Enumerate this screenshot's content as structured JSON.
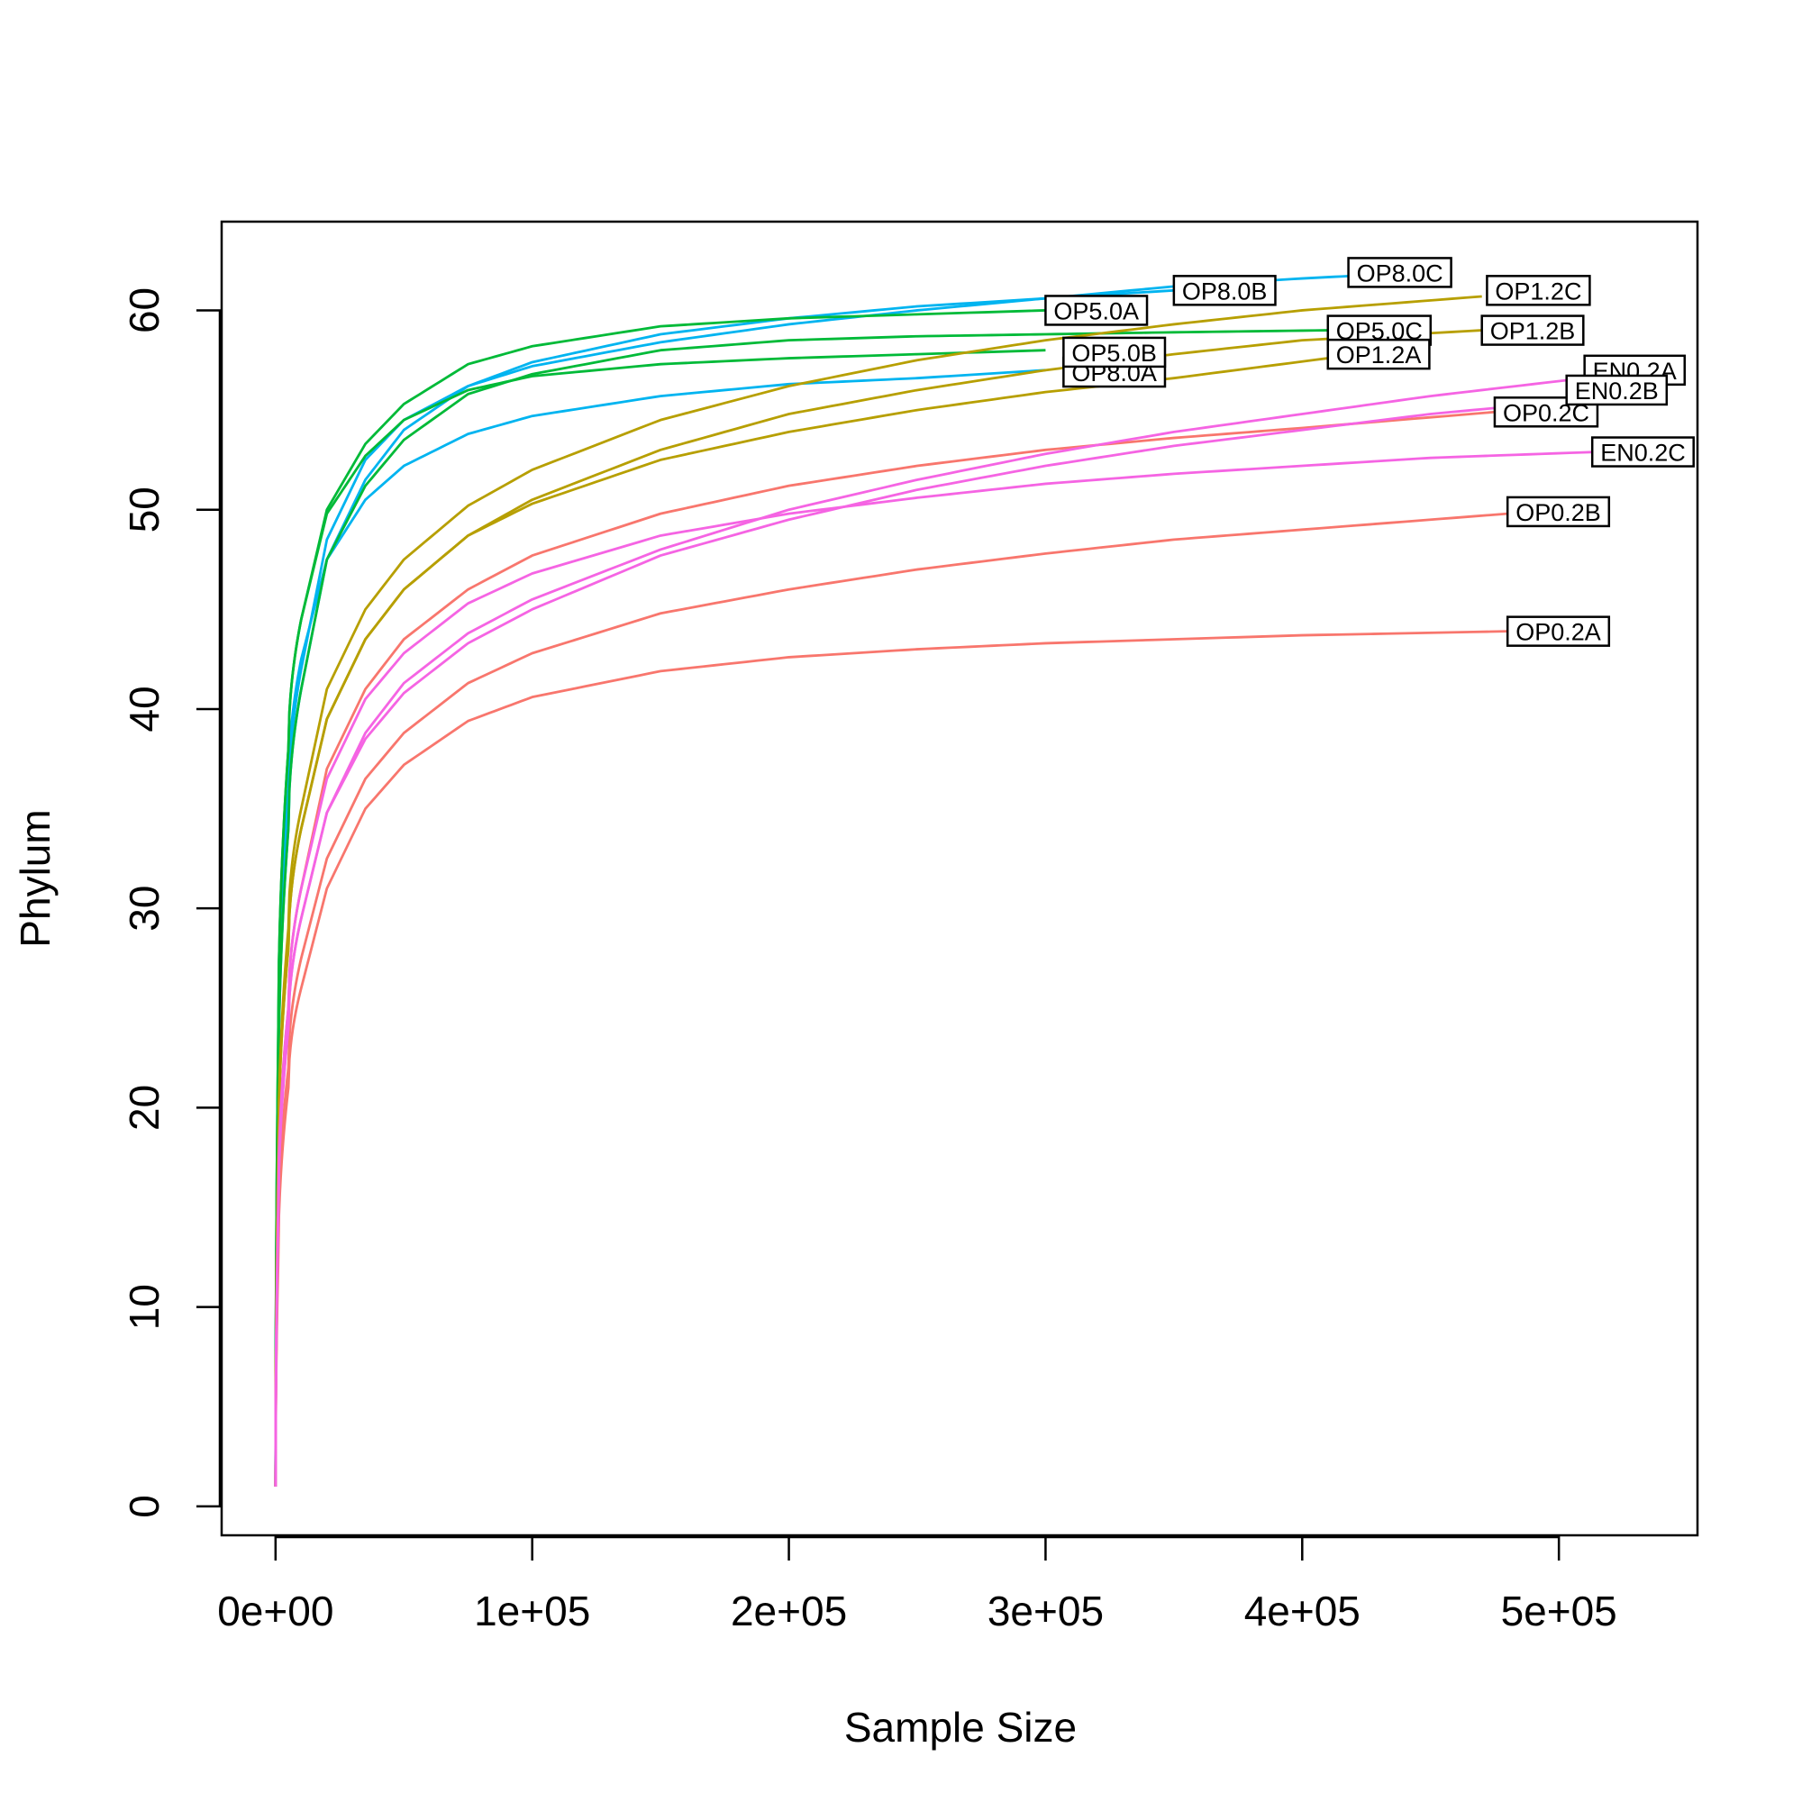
{
  "chart_data": {
    "type": "line",
    "title": "",
    "xlabel": "Sample Size",
    "ylabel": "Phylum",
    "xlim": [
      -21000,
      554000
    ],
    "ylim": [
      -1.45,
      64.45
    ],
    "x_ticks": [
      0,
      100000,
      200000,
      300000,
      400000,
      500000
    ],
    "x_tick_labels": [
      "0e+00",
      "1e+05",
      "2e+05",
      "3e+05",
      "4e+05",
      "5e+05"
    ],
    "y_ticks": [
      0,
      10,
      20,
      30,
      40,
      50,
      60
    ],
    "y_tick_labels": [
      "0",
      "10",
      "20",
      "30",
      "40",
      "50",
      "60"
    ],
    "grid": false,
    "legend": "none",
    "colors": {
      "OP0.2": "#F8766D",
      "OP1.2": "#B79F00",
      "OP5.0": "#00BA38",
      "OP8.0": "#00B4F0",
      "EN0.2": "#F564E3"
    },
    "series": [
      {
        "name": "OP8.0C",
        "color": "#00B4F0",
        "k": 8000,
        "points": [
          [
            0,
            1
          ],
          [
            1000,
            21
          ],
          [
            5000,
            35
          ],
          [
            10000,
            42
          ],
          [
            20000,
            48.5
          ],
          [
            35000,
            52.5
          ],
          [
            50000,
            54.5
          ],
          [
            75000,
            56.2
          ],
          [
            100000,
            57.2
          ],
          [
            150000,
            58.4
          ],
          [
            200000,
            59.3
          ],
          [
            250000,
            60
          ],
          [
            300000,
            60.6
          ],
          [
            350000,
            61.2
          ],
          [
            400000,
            61.6
          ],
          [
            430000,
            61.8
          ]
        ],
        "label": "OP8.0C",
        "label_x": 418000,
        "label_y": 61.9
      },
      {
        "name": "OP8.0B",
        "color": "#00B4F0",
        "k": 8000,
        "points": [
          [
            0,
            1
          ],
          [
            1000,
            20
          ],
          [
            5000,
            34
          ],
          [
            10000,
            41
          ],
          [
            20000,
            47.5
          ],
          [
            35000,
            51.5
          ],
          [
            50000,
            54
          ],
          [
            75000,
            56.2
          ],
          [
            100000,
            57.4
          ],
          [
            150000,
            58.8
          ],
          [
            200000,
            59.6
          ],
          [
            250000,
            60.2
          ],
          [
            300000,
            60.6
          ],
          [
            350000,
            61
          ]
        ],
        "label": "OP8.0B",
        "label_x": 350000,
        "label_y": 61
      },
      {
        "name": "OP8.0A",
        "color": "#00B4F0",
        "k": 8000,
        "points": [
          [
            0,
            1
          ],
          [
            1000,
            22
          ],
          [
            5000,
            36
          ],
          [
            10000,
            42.5
          ],
          [
            20000,
            47.5
          ],
          [
            35000,
            50.5
          ],
          [
            50000,
            52.2
          ],
          [
            75000,
            53.8
          ],
          [
            100000,
            54.7
          ],
          [
            150000,
            55.7
          ],
          [
            200000,
            56.3
          ],
          [
            250000,
            56.6
          ],
          [
            300000,
            57
          ]
        ],
        "label": "OP8.0A",
        "label_x": 307000,
        "label_y": 56.9
      },
      {
        "name": "OP5.0A",
        "color": "#00BA38",
        "k": 8000,
        "points": [
          [
            0,
            1
          ],
          [
            1000,
            23
          ],
          [
            5000,
            38
          ],
          [
            10000,
            44.5
          ],
          [
            20000,
            50
          ],
          [
            35000,
            53.3
          ],
          [
            50000,
            55.3
          ],
          [
            75000,
            57.3
          ],
          [
            100000,
            58.2
          ],
          [
            150000,
            59.2
          ],
          [
            200000,
            59.6
          ],
          [
            250000,
            59.8
          ],
          [
            300000,
            60
          ]
        ],
        "label": "OP5.0A",
        "label_x": 300000,
        "label_y": 60
      },
      {
        "name": "OP5.0B",
        "color": "#00BA38",
        "k": 8000,
        "points": [
          [
            0,
            1
          ],
          [
            1000,
            23
          ],
          [
            5000,
            38
          ],
          [
            10000,
            44.5
          ],
          [
            20000,
            49.8
          ],
          [
            35000,
            52.7
          ],
          [
            50000,
            54.5
          ],
          [
            75000,
            56
          ],
          [
            100000,
            56.7
          ],
          [
            150000,
            57.3
          ],
          [
            200000,
            57.6
          ],
          [
            250000,
            57.8
          ],
          [
            300000,
            58
          ]
        ],
        "label": "OP5.0B",
        "label_x": 307000,
        "label_y": 57.9
      },
      {
        "name": "OP5.0C",
        "color": "#00BA38",
        "k": 8000,
        "points": [
          [
            0,
            1
          ],
          [
            1000,
            20
          ],
          [
            5000,
            34
          ],
          [
            10000,
            41
          ],
          [
            20000,
            47.5
          ],
          [
            35000,
            51.2
          ],
          [
            50000,
            53.5
          ],
          [
            75000,
            55.8
          ],
          [
            100000,
            56.8
          ],
          [
            150000,
            58
          ],
          [
            200000,
            58.5
          ],
          [
            250000,
            58.7
          ],
          [
            300000,
            58.8
          ],
          [
            350000,
            58.9
          ],
          [
            410000,
            59
          ]
        ],
        "label": "OP5.0C",
        "label_x": 410000,
        "label_y": 59
      },
      {
        "name": "OP1.2A",
        "color": "#B79F00",
        "k": 8000,
        "points": [
          [
            0,
            1
          ],
          [
            1000,
            17
          ],
          [
            5000,
            28
          ],
          [
            10000,
            34
          ],
          [
            20000,
            39.5
          ],
          [
            35000,
            43.5
          ],
          [
            50000,
            46
          ],
          [
            75000,
            48.7
          ],
          [
            100000,
            50.3
          ],
          [
            150000,
            52.5
          ],
          [
            200000,
            53.9
          ],
          [
            250000,
            55
          ],
          [
            300000,
            55.9
          ],
          [
            350000,
            56.6
          ],
          [
            410000,
            57.6
          ]
        ],
        "label": "OP1.2A",
        "label_x": 410000,
        "label_y": 57.8
      },
      {
        "name": "OP1.2B",
        "color": "#B79F00",
        "k": 8000,
        "points": [
          [
            0,
            1
          ],
          [
            1000,
            17
          ],
          [
            5000,
            28
          ],
          [
            10000,
            34
          ],
          [
            20000,
            39.5
          ],
          [
            35000,
            43.5
          ],
          [
            50000,
            46
          ],
          [
            75000,
            48.7
          ],
          [
            100000,
            50.5
          ],
          [
            150000,
            53
          ],
          [
            200000,
            54.8
          ],
          [
            250000,
            56
          ],
          [
            300000,
            57
          ],
          [
            350000,
            57.8
          ],
          [
            400000,
            58.5
          ],
          [
            470000,
            59
          ]
        ],
        "label": "OP1.2B",
        "label_x": 470000,
        "label_y": 59
      },
      {
        "name": "OP1.2C",
        "color": "#B79F00",
        "k": 8000,
        "points": [
          [
            0,
            1
          ],
          [
            1000,
            17
          ],
          [
            5000,
            29
          ],
          [
            10000,
            35
          ],
          [
            20000,
            41
          ],
          [
            35000,
            45
          ],
          [
            50000,
            47.5
          ],
          [
            75000,
            50.2
          ],
          [
            100000,
            52
          ],
          [
            150000,
            54.5
          ],
          [
            200000,
            56.2
          ],
          [
            250000,
            57.5
          ],
          [
            300000,
            58.5
          ],
          [
            350000,
            59.3
          ],
          [
            400000,
            60
          ],
          [
            470000,
            60.7
          ]
        ],
        "label": "OP1.2C",
        "label_x": 472000,
        "label_y": 61
      },
      {
        "name": "OP0.2A",
        "color": "#F8766D",
        "k": 8000,
        "points": [
          [
            0,
            1
          ],
          [
            1000,
            12
          ],
          [
            5000,
            21
          ],
          [
            10000,
            26
          ],
          [
            20000,
            31
          ],
          [
            35000,
            35
          ],
          [
            50000,
            37.2
          ],
          [
            75000,
            39.4
          ],
          [
            100000,
            40.6
          ],
          [
            150000,
            41.9
          ],
          [
            200000,
            42.6
          ],
          [
            250000,
            43
          ],
          [
            300000,
            43.3
          ],
          [
            350000,
            43.5
          ],
          [
            400000,
            43.7
          ],
          [
            480000,
            43.9
          ]
        ],
        "label": "OP0.2A",
        "label_x": 480000,
        "label_y": 43.9
      },
      {
        "name": "OP0.2B",
        "color": "#F8766D",
        "k": 8000,
        "points": [
          [
            0,
            1
          ],
          [
            1000,
            13
          ],
          [
            5000,
            22
          ],
          [
            10000,
            27.5
          ],
          [
            20000,
            32.5
          ],
          [
            35000,
            36.5
          ],
          [
            50000,
            38.8
          ],
          [
            75000,
            41.3
          ],
          [
            100000,
            42.8
          ],
          [
            150000,
            44.8
          ],
          [
            200000,
            46
          ],
          [
            250000,
            47
          ],
          [
            300000,
            47.8
          ],
          [
            350000,
            48.5
          ],
          [
            400000,
            49
          ],
          [
            480000,
            49.8
          ]
        ],
        "label": "OP0.2B",
        "label_x": 480000,
        "label_y": 49.9
      },
      {
        "name": "OP0.2C",
        "color": "#F8766D",
        "k": 8000,
        "points": [
          [
            0,
            1
          ],
          [
            1000,
            15
          ],
          [
            5000,
            25
          ],
          [
            10000,
            31
          ],
          [
            20000,
            37
          ],
          [
            35000,
            41
          ],
          [
            50000,
            43.5
          ],
          [
            75000,
            46
          ],
          [
            100000,
            47.7
          ],
          [
            150000,
            49.8
          ],
          [
            200000,
            51.2
          ],
          [
            250000,
            52.2
          ],
          [
            300000,
            53
          ],
          [
            350000,
            53.6
          ],
          [
            400000,
            54.1
          ],
          [
            475000,
            54.9
          ]
        ],
        "label": "OP0.2C",
        "label_x": 475000,
        "label_y": 54.9
      },
      {
        "name": "EN0.2A",
        "color": "#F564E3",
        "k": 8000,
        "points": [
          [
            0,
            1
          ],
          [
            1000,
            14
          ],
          [
            5000,
            24
          ],
          [
            10000,
            29.5
          ],
          [
            20000,
            34.8
          ],
          [
            35000,
            38.8
          ],
          [
            50000,
            41.3
          ],
          [
            75000,
            43.8
          ],
          [
            100000,
            45.5
          ],
          [
            150000,
            48
          ],
          [
            200000,
            50
          ],
          [
            250000,
            51.5
          ],
          [
            300000,
            52.8
          ],
          [
            350000,
            53.9
          ],
          [
            400000,
            54.8
          ],
          [
            450000,
            55.7
          ],
          [
            510000,
            56.6
          ]
        ],
        "label": "EN0.2A",
        "label_x": 510000,
        "label_y": 57
      },
      {
        "name": "EN0.2B",
        "color": "#F564E3",
        "k": 8000,
        "points": [
          [
            0,
            1
          ],
          [
            1000,
            14
          ],
          [
            5000,
            24
          ],
          [
            10000,
            29.5
          ],
          [
            20000,
            34.8
          ],
          [
            35000,
            38.5
          ],
          [
            50000,
            40.8
          ],
          [
            75000,
            43.3
          ],
          [
            100000,
            45
          ],
          [
            150000,
            47.7
          ],
          [
            200000,
            49.5
          ],
          [
            250000,
            51
          ],
          [
            300000,
            52.2
          ],
          [
            350000,
            53.2
          ],
          [
            400000,
            54
          ],
          [
            450000,
            54.8
          ],
          [
            500000,
            55.4
          ]
        ],
        "label": "EN0.2B",
        "label_x": 503000,
        "label_y": 56
      },
      {
        "name": "EN0.2C",
        "color": "#F564E3",
        "k": 8000,
        "points": [
          [
            0,
            1
          ],
          [
            1000,
            14.5
          ],
          [
            5000,
            25
          ],
          [
            10000,
            31
          ],
          [
            20000,
            36.5
          ],
          [
            35000,
            40.5
          ],
          [
            50000,
            42.8
          ],
          [
            75000,
            45.3
          ],
          [
            100000,
            46.8
          ],
          [
            150000,
            48.7
          ],
          [
            200000,
            49.8
          ],
          [
            250000,
            50.6
          ],
          [
            300000,
            51.3
          ],
          [
            350000,
            51.8
          ],
          [
            400000,
            52.2
          ],
          [
            450000,
            52.6
          ],
          [
            515000,
            52.9
          ]
        ],
        "label": "EN0.2C",
        "label_x": 513000,
        "label_y": 52.9
      }
    ]
  }
}
